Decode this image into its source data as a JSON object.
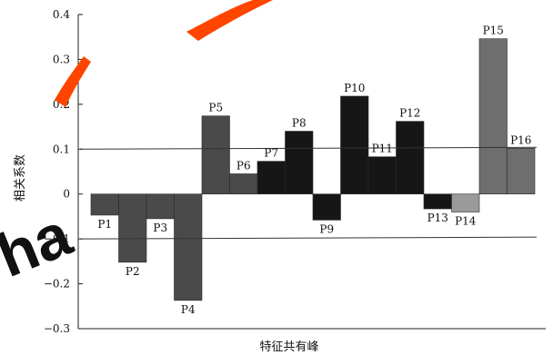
{
  "chart_data": {
    "type": "bar",
    "title": "",
    "xlabel": "特征共有峰",
    "ylabel": "相关系数",
    "ylim": [
      -0.3,
      0.4
    ],
    "yticks": [
      0.4,
      0.3,
      0.2,
      0.1,
      0,
      -0.1,
      -0.2,
      -0.3
    ],
    "ytick_labels": [
      "0.4",
      "0.3",
      "0.2",
      "0.1",
      "0",
      "−0.1",
      "−0.2",
      "−0.3"
    ],
    "categories": [
      "P1",
      "P2",
      "P3",
      "P4",
      "P5",
      "P6",
      "P7",
      "P8",
      "P9",
      "P10",
      "P11",
      "P12",
      "P13",
      "P14",
      "P15",
      "P16"
    ],
    "values": [
      -0.047,
      -0.152,
      -0.055,
      -0.237,
      0.174,
      0.045,
      0.073,
      0.14,
      -0.058,
      0.218,
      0.083,
      0.162,
      -0.033,
      -0.04,
      0.346,
      0.102
    ],
    "bar_colors": [
      "#4a4a4a",
      "#4a4a4a",
      "#4a4a4a",
      "#4a4a4a",
      "#4a4a4a",
      "#4a4a4a",
      "#161616",
      "#161616",
      "#161616",
      "#161616",
      "#161616",
      "#161616",
      "#161616",
      "#9a9a9a",
      "#6e6e6e",
      "#6e6e6e"
    ],
    "reference_lines": [
      0.1,
      -0.1
    ],
    "grid": false,
    "legend": "none"
  },
  "watermark": {
    "text": "ha",
    "color": "#ff4500"
  }
}
